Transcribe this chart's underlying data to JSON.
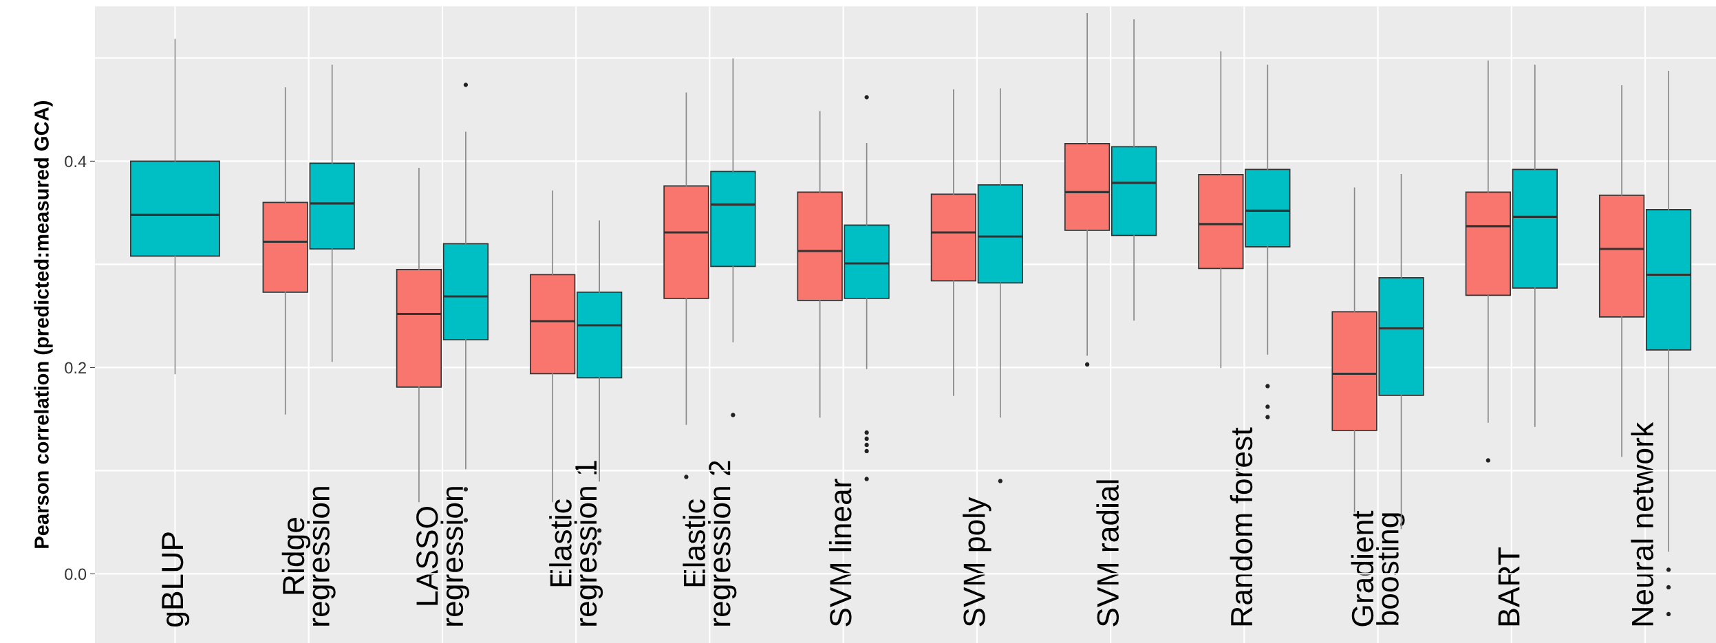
{
  "chart_data": {
    "type": "box",
    "ylabel": "Pearson correlation (predicted:measured GCA)",
    "categories": [
      "gBLUP",
      "Ridge\nregression",
      "LASSO\nregression",
      "Elastic\nregression 1",
      "Elastic\nregression 2",
      "SVM linear",
      "SVM poly",
      "SVM radial",
      "Random forest",
      "Gradient\nboosting",
      "BART",
      "Neural network"
    ],
    "ylim": [
      -0.067,
      0.55
    ],
    "yticks": [
      {
        "value": 0.0,
        "label": "0.0"
      },
      {
        "value": 0.1,
        "label": null
      },
      {
        "value": 0.2,
        "label": "0.2"
      },
      {
        "value": 0.3,
        "label": null
      },
      {
        "value": 0.4,
        "label": "0.4"
      },
      {
        "value": 0.5,
        "label": null
      }
    ],
    "grid": true,
    "series": [
      {
        "color": "#f8766d",
        "boxes": [
          null,
          {
            "low": 0.155,
            "q1": 0.273,
            "median": 0.322,
            "q3": 0.36,
            "high": 0.471
          },
          {
            "low": 0.07,
            "q1": 0.181,
            "median": 0.252,
            "q3": 0.295,
            "high": 0.393
          },
          {
            "low": 0.07,
            "q1": 0.194,
            "median": 0.245,
            "q3": 0.29,
            "high": 0.371
          },
          {
            "low": 0.145,
            "q1": 0.267,
            "median": 0.331,
            "q3": 0.376,
            "high": 0.466,
            "outliers": [
              0.094
            ]
          },
          {
            "low": 0.152,
            "q1": 0.265,
            "median": 0.313,
            "q3": 0.37,
            "high": 0.448
          },
          {
            "low": 0.173,
            "q1": 0.284,
            "median": 0.331,
            "q3": 0.368,
            "high": 0.469
          },
          {
            "low": 0.212,
            "q1": 0.333,
            "median": 0.37,
            "q3": 0.417,
            "high": 0.543,
            "outliers": [
              0.203
            ]
          },
          {
            "low": 0.2,
            "q1": 0.296,
            "median": 0.339,
            "q3": 0.387,
            "high": 0.506
          },
          {
            "low": 0.06,
            "q1": 0.139,
            "median": 0.194,
            "q3": 0.254,
            "high": 0.374
          },
          {
            "low": 0.147,
            "q1": 0.27,
            "median": 0.337,
            "q3": 0.37,
            "high": 0.497,
            "outliers": [
              0.11
            ]
          },
          {
            "low": 0.114,
            "q1": 0.249,
            "median": 0.315,
            "q3": 0.367,
            "high": 0.473
          }
        ]
      },
      {
        "color": "#00bfc4",
        "boxes": [
          {
            "low": 0.194,
            "q1": 0.308,
            "median": 0.348,
            "q3": 0.4,
            "high": 0.518
          },
          {
            "low": 0.206,
            "q1": 0.315,
            "median": 0.359,
            "q3": 0.398,
            "high": 0.493
          },
          {
            "low": 0.102,
            "q1": 0.227,
            "median": 0.269,
            "q3": 0.32,
            "high": 0.428,
            "outliers": [
              0.474,
              0.082,
              0.052
            ]
          },
          {
            "low": 0.09,
            "q1": 0.19,
            "median": 0.241,
            "q3": 0.273,
            "high": 0.342,
            "outliers": [
              0.042,
              0.03
            ]
          },
          {
            "low": 0.225,
            "q1": 0.298,
            "median": 0.358,
            "q3": 0.39,
            "high": 0.499,
            "outliers": [
              0.154
            ]
          },
          {
            "low": 0.199,
            "q1": 0.267,
            "median": 0.301,
            "q3": 0.338,
            "high": 0.417,
            "outliers": [
              0.462,
              0.137,
              0.131,
              0.125,
              0.119,
              0.092
            ]
          },
          {
            "low": 0.152,
            "q1": 0.282,
            "median": 0.327,
            "q3": 0.377,
            "high": 0.47,
            "outliers": [
              0.09
            ]
          },
          {
            "low": 0.246,
            "q1": 0.328,
            "median": 0.379,
            "q3": 0.414,
            "high": 0.537
          },
          {
            "low": 0.213,
            "q1": 0.317,
            "median": 0.352,
            "q3": 0.392,
            "high": 0.493,
            "outliers": [
              0.182,
              0.162,
              0.152
            ]
          },
          {
            "low": 0.044,
            "q1": 0.173,
            "median": 0.238,
            "q3": 0.287,
            "high": 0.387
          },
          {
            "low": 0.143,
            "q1": 0.277,
            "median": 0.346,
            "q3": 0.392,
            "high": 0.493
          },
          {
            "low": 0.022,
            "q1": 0.217,
            "median": 0.29,
            "q3": 0.353,
            "high": 0.487,
            "outliers": [
              0.004,
              -0.013,
              -0.039
            ]
          }
        ]
      }
    ]
  }
}
